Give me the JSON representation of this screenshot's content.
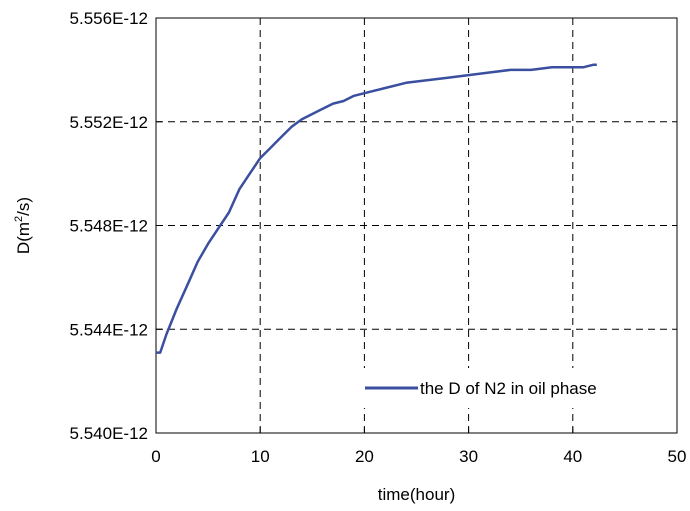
{
  "colors": {
    "series": "#3A4FA0",
    "grid": "#000000",
    "frame": "#000000"
  },
  "chart_data": {
    "type": "line",
    "xlabel": "time(hour)",
    "ylabel_parts": {
      "pre": "D(m",
      "sup": "2",
      "post": "/s)"
    },
    "xlim": [
      0,
      50
    ],
    "ylim": [
      5.54e-12,
      5.556e-12
    ],
    "x_ticks": [
      {
        "value": 0,
        "label": "0"
      },
      {
        "value": 10,
        "label": "10"
      },
      {
        "value": 20,
        "label": "20"
      },
      {
        "value": 30,
        "label": "30"
      },
      {
        "value": 40,
        "label": "40"
      },
      {
        "value": 50,
        "label": "50"
      }
    ],
    "y_ticks": [
      {
        "value": 5.54e-12,
        "label": "5.540E-12"
      },
      {
        "value": 5.544e-12,
        "label": "5.544E-12"
      },
      {
        "value": 5.548e-12,
        "label": "5.548E-12"
      },
      {
        "value": 5.552e-12,
        "label": "5.552E-12"
      },
      {
        "value": 5.556e-12,
        "label": "5.556E-12"
      }
    ],
    "grid": true,
    "grid_style": "dashed",
    "legend_position": "bottom-right",
    "series": [
      {
        "name": "the D of N2 in oil phase",
        "x": [
          0,
          0.4,
          1,
          2,
          3,
          4,
          5,
          6,
          7,
          8,
          9,
          10,
          11,
          12,
          13,
          14,
          15,
          16,
          17,
          18,
          19,
          20,
          22,
          24,
          26,
          28,
          30,
          32,
          34,
          36,
          38,
          40,
          41,
          42,
          42.3
        ],
        "y": [
          5.5431e-12,
          5.5431e-12,
          5.5438e-12,
          5.5448e-12,
          5.5457e-12,
          5.5466e-12,
          5.5473e-12,
          5.5479e-12,
          5.5485e-12,
          5.5494e-12,
          5.55e-12,
          5.5506e-12,
          5.551e-12,
          5.5514e-12,
          5.5518e-12,
          5.5521e-12,
          5.5523e-12,
          5.5525e-12,
          5.5527e-12,
          5.5528e-12,
          5.553e-12,
          5.5531e-12,
          5.5533e-12,
          5.5535e-12,
          5.5536e-12,
          5.5537e-12,
          5.5538e-12,
          5.5539e-12,
          5.554e-12,
          5.554e-12,
          5.5541e-12,
          5.5541e-12,
          5.5541e-12,
          5.5542e-12,
          5.5542e-12
        ]
      }
    ]
  }
}
